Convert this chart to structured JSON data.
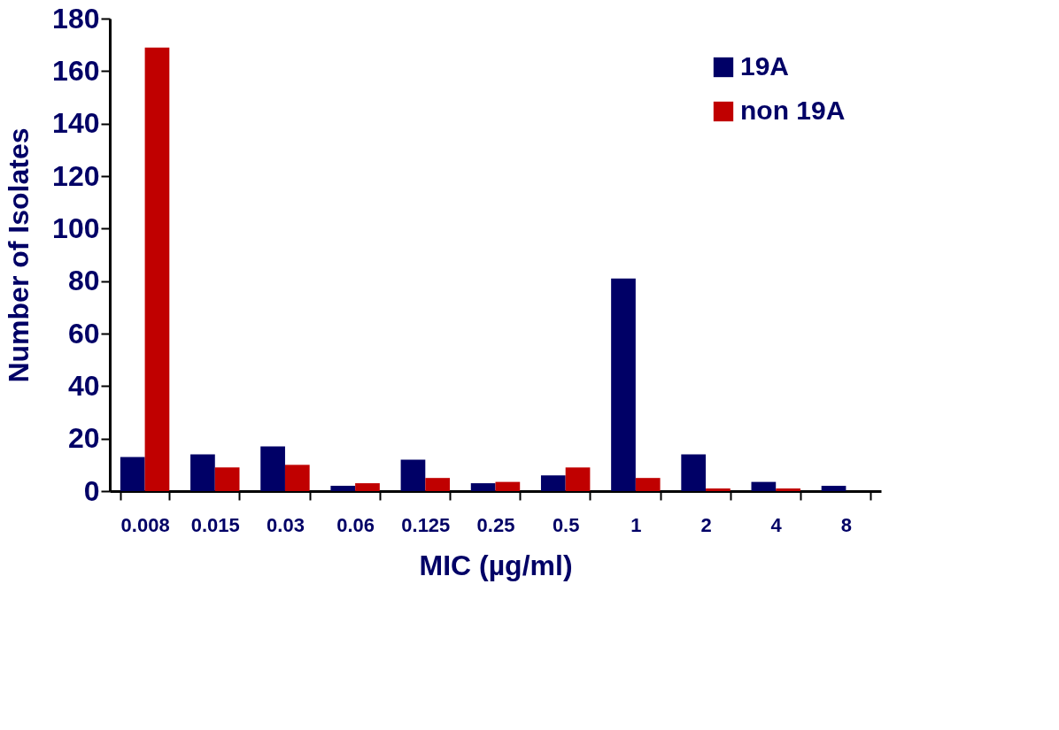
{
  "chart_data": {
    "type": "bar",
    "xlabel": "MIC (µg/ml)",
    "ylabel": "Number of Isolates",
    "categories": [
      "0.008",
      "0.015",
      "0.03",
      "0.06",
      "0.125",
      "0.25",
      "0.5",
      "1",
      "2",
      "4",
      "8"
    ],
    "series": [
      {
        "name": "19A",
        "color": "#000066",
        "values": [
          13,
          14,
          17,
          2,
          12,
          3,
          6,
          81,
          14,
          3.5,
          2
        ]
      },
      {
        "name": "non 19A",
        "color": "#c00000",
        "values": [
          169,
          9,
          10,
          3,
          5,
          3.5,
          9,
          5,
          1,
          1,
          0
        ]
      }
    ],
    "ylim": [
      0,
      180
    ],
    "yticks": [
      0,
      20,
      40,
      60,
      80,
      100,
      120,
      140,
      160,
      180
    ],
    "grid": false,
    "legend": "top right"
  }
}
